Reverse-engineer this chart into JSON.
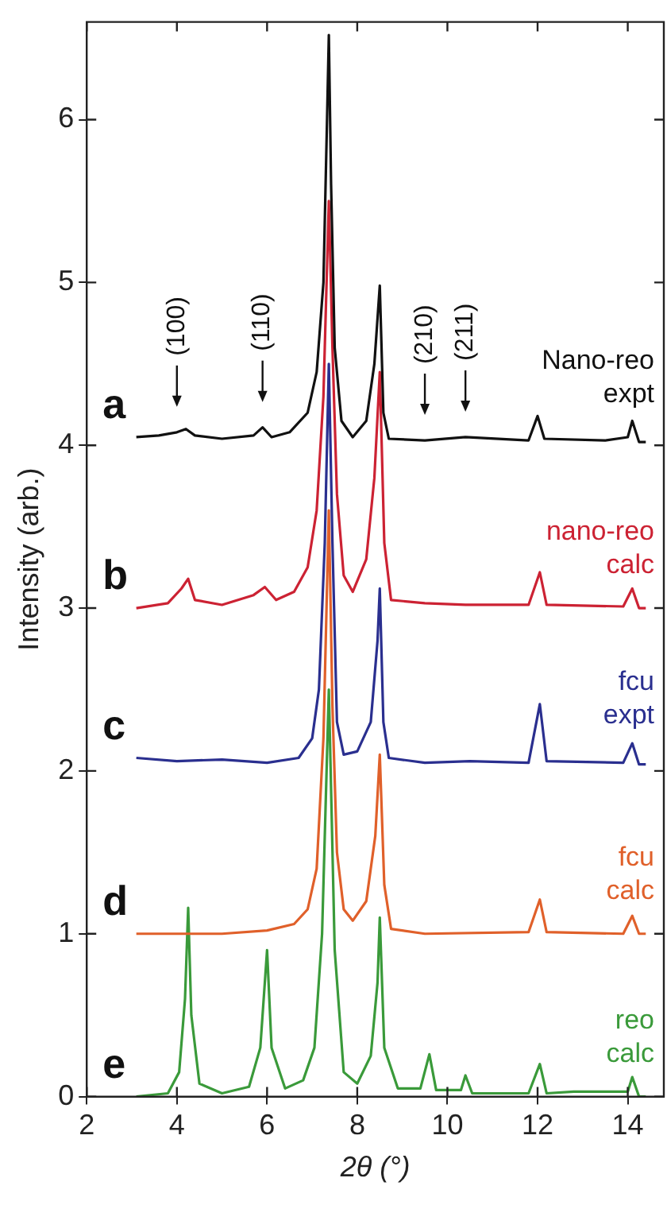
{
  "chart_data": {
    "type": "line",
    "xlabel": "2θ (°)",
    "ylabel": "Intensity (arb.)",
    "xlim": [
      2,
      14.8
    ],
    "ylim": [
      0,
      6.6
    ],
    "xticks": [
      2,
      4,
      6,
      8,
      10,
      12,
      14
    ],
    "yticks": [
      0,
      1,
      2,
      3,
      4,
      5,
      6
    ],
    "grid": false,
    "legend": false,
    "marker": "none",
    "line_style": "solid",
    "series": [
      {
        "name": "Nano-reo expt",
        "color": "#111111",
        "x": [
          3.1,
          3.6,
          4.0,
          4.2,
          4.4,
          5.0,
          5.7,
          5.9,
          6.1,
          6.5,
          6.9,
          7.1,
          7.25,
          7.33,
          7.37,
          7.42,
          7.5,
          7.65,
          7.9,
          8.2,
          8.38,
          8.5,
          8.58,
          8.7,
          9.5,
          10.4,
          11.8,
          12.0,
          12.15,
          13.5,
          14.0,
          14.1,
          14.25,
          14.4
        ],
        "values": [
          4.05,
          4.06,
          4.08,
          4.1,
          4.06,
          4.04,
          4.06,
          4.11,
          4.05,
          4.08,
          4.2,
          4.45,
          5.0,
          6.0,
          6.52,
          5.6,
          4.6,
          4.15,
          4.05,
          4.15,
          4.5,
          4.98,
          4.2,
          4.04,
          4.03,
          4.05,
          4.03,
          4.18,
          4.04,
          4.03,
          4.05,
          4.15,
          4.02,
          4.02
        ]
      },
      {
        "name": "nano-reo calc",
        "color": "#cc2233",
        "x": [
          3.1,
          3.8,
          4.1,
          4.25,
          4.4,
          5.0,
          5.7,
          5.95,
          6.2,
          6.6,
          6.9,
          7.1,
          7.25,
          7.37,
          7.45,
          7.55,
          7.7,
          7.9,
          8.2,
          8.38,
          8.5,
          8.6,
          8.75,
          9.5,
          10.4,
          11.8,
          12.05,
          12.2,
          13.9,
          14.1,
          14.25,
          14.4
        ],
        "values": [
          3.0,
          3.03,
          3.12,
          3.18,
          3.05,
          3.02,
          3.08,
          3.13,
          3.05,
          3.1,
          3.25,
          3.6,
          4.3,
          5.5,
          4.6,
          3.7,
          3.2,
          3.1,
          3.3,
          3.8,
          4.45,
          3.4,
          3.05,
          3.03,
          3.02,
          3.02,
          3.22,
          3.02,
          3.01,
          3.12,
          3.0,
          3.0
        ]
      },
      {
        "name": "fcu expt",
        "color": "#2a2f8f",
        "x": [
          3.1,
          4.0,
          5.0,
          6.0,
          6.7,
          7.0,
          7.15,
          7.28,
          7.37,
          7.45,
          7.55,
          7.7,
          8.0,
          8.3,
          8.45,
          8.5,
          8.58,
          8.7,
          9.5,
          10.5,
          11.8,
          12.05,
          12.2,
          13.9,
          14.1,
          14.25,
          14.4
        ],
        "values": [
          2.08,
          2.06,
          2.07,
          2.05,
          2.08,
          2.2,
          2.5,
          3.4,
          4.5,
          3.4,
          2.3,
          2.1,
          2.12,
          2.3,
          2.8,
          3.12,
          2.3,
          2.08,
          2.05,
          2.06,
          2.05,
          2.41,
          2.06,
          2.05,
          2.17,
          2.04,
          2.04
        ]
      },
      {
        "name": "fcu calc",
        "color": "#e0602a",
        "x": [
          3.1,
          5.0,
          6.0,
          6.6,
          6.9,
          7.1,
          7.25,
          7.37,
          7.45,
          7.55,
          7.7,
          7.9,
          8.2,
          8.4,
          8.5,
          8.6,
          8.75,
          9.5,
          11.8,
          12.05,
          12.2,
          13.9,
          14.1,
          14.25,
          14.4
        ],
        "values": [
          1.0,
          1.0,
          1.02,
          1.06,
          1.15,
          1.4,
          2.2,
          3.6,
          2.4,
          1.5,
          1.15,
          1.08,
          1.2,
          1.6,
          2.1,
          1.3,
          1.03,
          1.0,
          1.01,
          1.21,
          1.01,
          1.0,
          1.11,
          1.0,
          1.0
        ]
      },
      {
        "name": "reo calc",
        "color": "#3a9a3a",
        "x": [
          3.1,
          3.8,
          4.05,
          4.18,
          4.25,
          4.32,
          4.5,
          5.0,
          5.6,
          5.85,
          6.0,
          6.1,
          6.4,
          6.8,
          7.05,
          7.22,
          7.37,
          7.5,
          7.7,
          8.0,
          8.3,
          8.45,
          8.5,
          8.6,
          8.9,
          9.4,
          9.6,
          9.75,
          10.3,
          10.4,
          10.55,
          11.8,
          12.05,
          12.2,
          12.8,
          13.3,
          13.7,
          14.0,
          14.1,
          14.25,
          14.4
        ],
        "values": [
          0.0,
          0.02,
          0.15,
          0.6,
          1.16,
          0.5,
          0.08,
          0.02,
          0.06,
          0.3,
          0.9,
          0.3,
          0.05,
          0.1,
          0.3,
          1.0,
          2.5,
          0.9,
          0.15,
          0.08,
          0.25,
          0.7,
          1.1,
          0.3,
          0.05,
          0.05,
          0.26,
          0.04,
          0.04,
          0.13,
          0.02,
          0.02,
          0.2,
          0.02,
          0.03,
          0.03,
          0.03,
          0.03,
          0.12,
          0.0,
          0.0
        ]
      }
    ],
    "annotations": [
      "a",
      "b",
      "c",
      "d",
      "e",
      {
        "text": "(100)",
        "x": 4.0,
        "y": 4.08
      },
      {
        "text": "(110)",
        "x": 5.9,
        "y": 4.11
      },
      {
        "text": "(210)",
        "x": 9.5,
        "y": 4.03
      },
      {
        "text": "(211)",
        "x": 10.4,
        "y": 4.05
      }
    ]
  }
}
